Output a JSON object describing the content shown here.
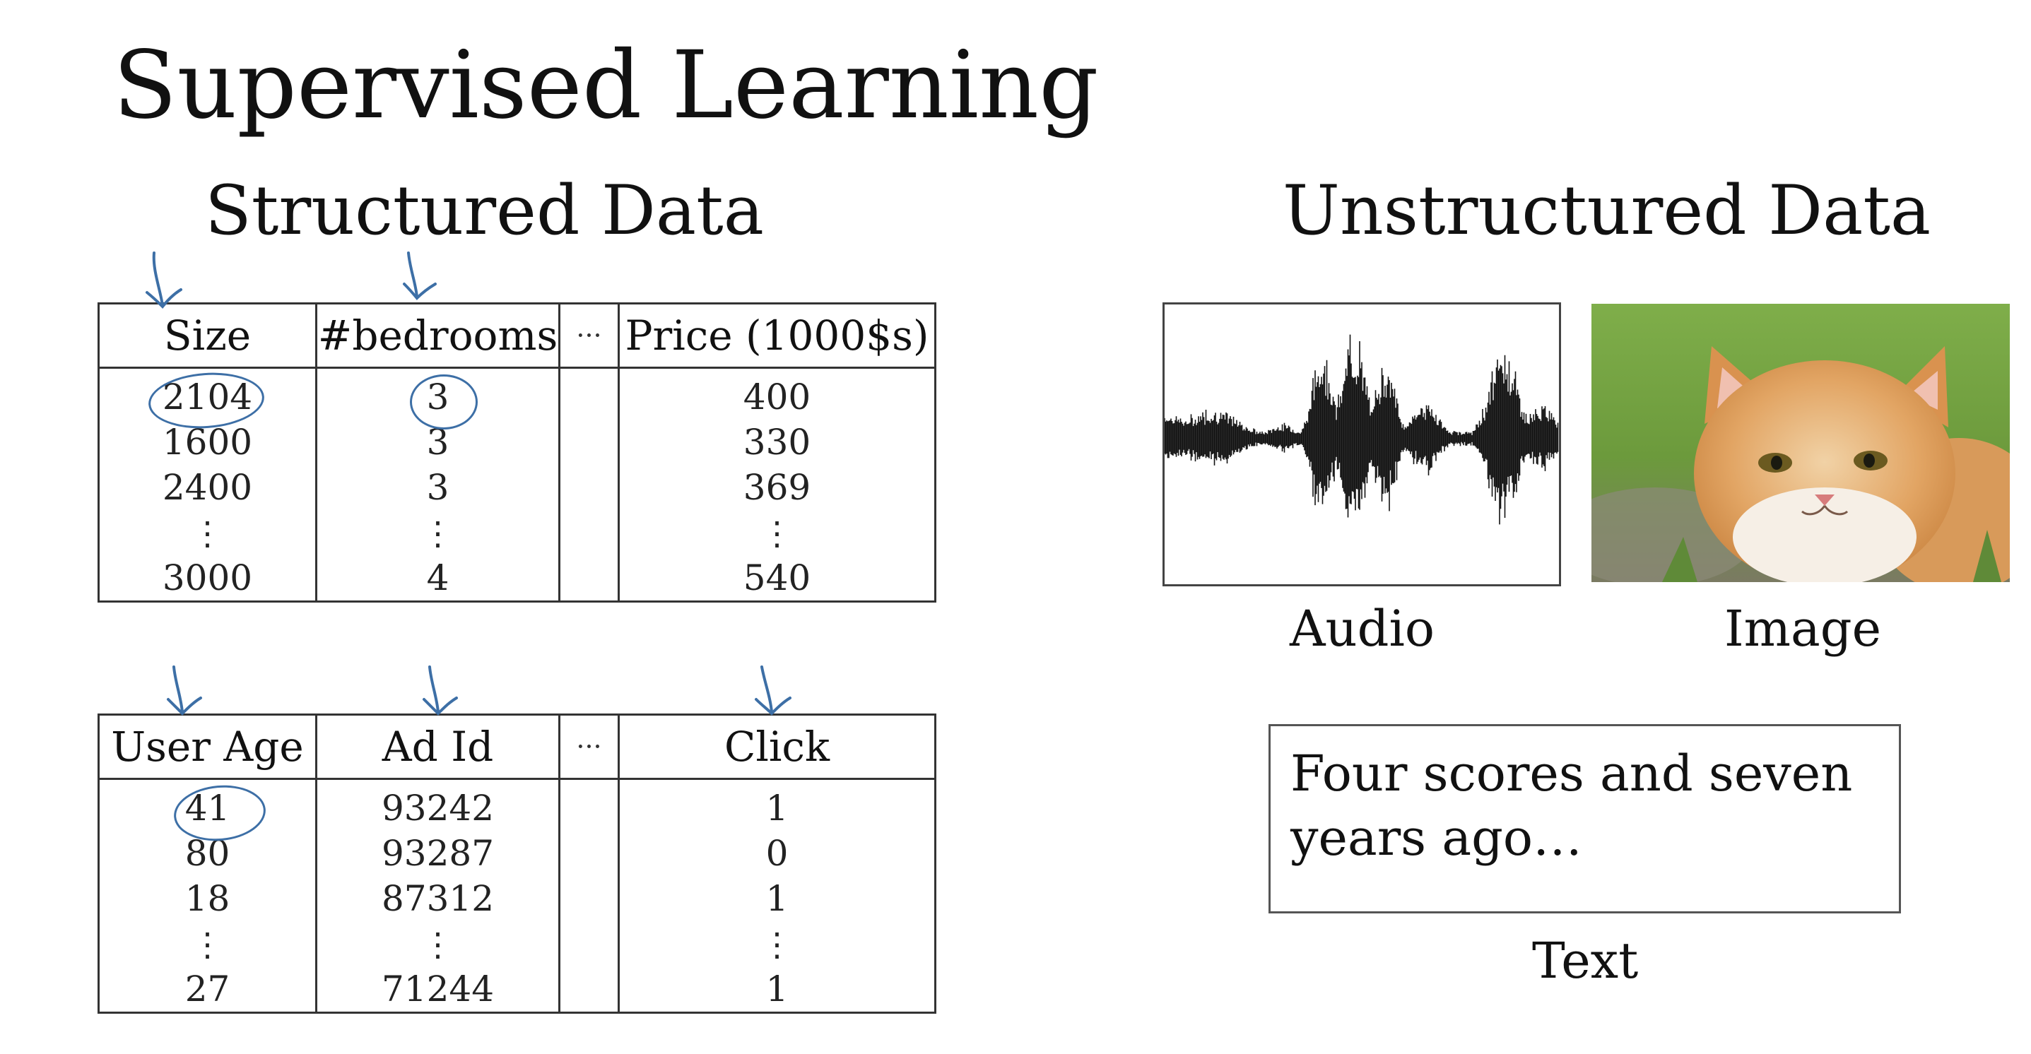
{
  "slide": {
    "title": "Supervised Learning",
    "structured_title": "Structured Data",
    "unstructured_title": "Unstructured Data"
  },
  "table_housing": {
    "headers": [
      "Size",
      "#bedrooms",
      "···",
      "Price (1000$s)"
    ],
    "rows": [
      [
        "2104",
        "3",
        "",
        "400"
      ],
      [
        "1600",
        "3",
        "",
        "330"
      ],
      [
        "2400",
        "3",
        "",
        "369"
      ],
      [
        "⋮",
        "⋮",
        "",
        "⋮"
      ],
      [
        "3000",
        "4",
        "",
        "540"
      ]
    ]
  },
  "table_ads": {
    "headers": [
      "User Age",
      "Ad Id",
      "···",
      "Click"
    ],
    "rows": [
      [
        "41",
        "93242",
        "",
        "1"
      ],
      [
        "80",
        "93287",
        "",
        "0"
      ],
      [
        "18",
        "87312",
        "",
        "1"
      ],
      [
        "⋮",
        "⋮",
        "",
        "⋮"
      ],
      [
        "27",
        "71244",
        "",
        "1"
      ]
    ]
  },
  "unstructured": {
    "audio_label": "Audio",
    "image_label": "Image",
    "text_sample": "Four scores and seven years ago…",
    "text_label": "Text"
  },
  "colors": {
    "annotation": "#3d6fa6",
    "border": "#333333",
    "text": "#111111"
  },
  "icons": {
    "audio": "audio-waveform-icon",
    "image": "cat-photo-icon"
  }
}
